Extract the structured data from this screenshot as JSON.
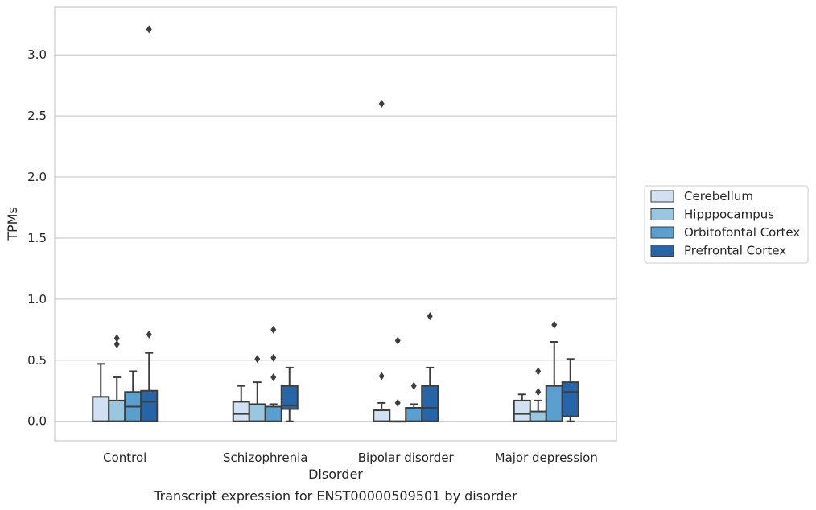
{
  "chart_data": {
    "type": "box",
    "xlabel": "Disorder",
    "ylabel": "TPMs",
    "caption": "Transcript expression for ENST00000509501 by disorder",
    "categories": [
      "Control",
      "Schizophrenia",
      "Bipolar disorder",
      "Major depression"
    ],
    "ylim": [
      -0.16,
      3.39
    ],
    "yticks": [
      0.0,
      0.5,
      1.0,
      1.5,
      2.0,
      2.5,
      3.0
    ],
    "ytick_labels": [
      "0.0",
      "0.5",
      "1.0",
      "1.5",
      "2.0",
      "2.5",
      "3.0"
    ],
    "grid": true,
    "legend_position": "right",
    "series": [
      {
        "name": "Cerebellum",
        "color": "#cfe1f2",
        "boxes": [
          {
            "whisker_low": 0.0,
            "q1": 0.0,
            "median": 0.0,
            "q3": 0.2,
            "whisker_high": 0.47,
            "outliers": []
          },
          {
            "whisker_low": 0.0,
            "q1": 0.0,
            "median": 0.06,
            "q3": 0.16,
            "whisker_high": 0.29,
            "outliers": []
          },
          {
            "whisker_low": 0.0,
            "q1": 0.0,
            "median": 0.0,
            "q3": 0.09,
            "whisker_high": 0.15,
            "outliers": [
              0.37,
              2.6
            ]
          },
          {
            "whisker_low": 0.0,
            "q1": 0.0,
            "median": 0.06,
            "q3": 0.17,
            "whisker_high": 0.22,
            "outliers": []
          }
        ]
      },
      {
        "name": "Hipppocampus",
        "color": "#9ac7e0",
        "boxes": [
          {
            "whisker_low": 0.0,
            "q1": 0.0,
            "median": 0.0,
            "q3": 0.17,
            "whisker_high": 0.36,
            "outliers": [
              0.63,
              0.68
            ]
          },
          {
            "whisker_low": 0.0,
            "q1": 0.0,
            "median": 0.0,
            "q3": 0.14,
            "whisker_high": 0.32,
            "outliers": [
              0.51
            ]
          },
          {
            "whisker_low": 0.0,
            "q1": 0.0,
            "median": 0.0,
            "q3": 0.0,
            "whisker_high": 0.0,
            "outliers": [
              0.15,
              0.66
            ]
          },
          {
            "whisker_low": 0.0,
            "q1": 0.0,
            "median": 0.0,
            "q3": 0.08,
            "whisker_high": 0.17,
            "outliers": [
              0.24,
              0.41
            ]
          }
        ]
      },
      {
        "name": "Orbitofontal Cortex",
        "color": "#5a9fcd",
        "boxes": [
          {
            "whisker_low": 0.0,
            "q1": 0.0,
            "median": 0.12,
            "q3": 0.24,
            "whisker_high": 0.41,
            "outliers": []
          },
          {
            "whisker_low": 0.0,
            "q1": 0.0,
            "median": 0.12,
            "q3": 0.12,
            "whisker_high": 0.14,
            "outliers": [
              0.36,
              0.52,
              0.75
            ]
          },
          {
            "whisker_low": 0.0,
            "q1": 0.0,
            "median": 0.0,
            "q3": 0.11,
            "whisker_high": 0.14,
            "outliers": [
              0.29
            ]
          },
          {
            "whisker_low": 0.0,
            "q1": 0.0,
            "median": 0.0,
            "q3": 0.29,
            "whisker_high": 0.65,
            "outliers": [
              0.79
            ]
          }
        ]
      },
      {
        "name": "Prefrontal Cortex",
        "color": "#2666a8",
        "boxes": [
          {
            "whisker_low": 0.0,
            "q1": 0.0,
            "median": 0.16,
            "q3": 0.25,
            "whisker_high": 0.56,
            "outliers": [
              0.71,
              3.21
            ]
          },
          {
            "whisker_low": 0.0,
            "q1": 0.1,
            "median": 0.13,
            "q3": 0.29,
            "whisker_high": 0.44,
            "outliers": []
          },
          {
            "whisker_low": 0.0,
            "q1": 0.0,
            "median": 0.11,
            "q3": 0.29,
            "whisker_high": 0.44,
            "outliers": [
              0.86
            ]
          },
          {
            "whisker_low": 0.0,
            "q1": 0.04,
            "median": 0.24,
            "q3": 0.32,
            "whisker_high": 0.51,
            "outliers": []
          }
        ]
      }
    ]
  }
}
